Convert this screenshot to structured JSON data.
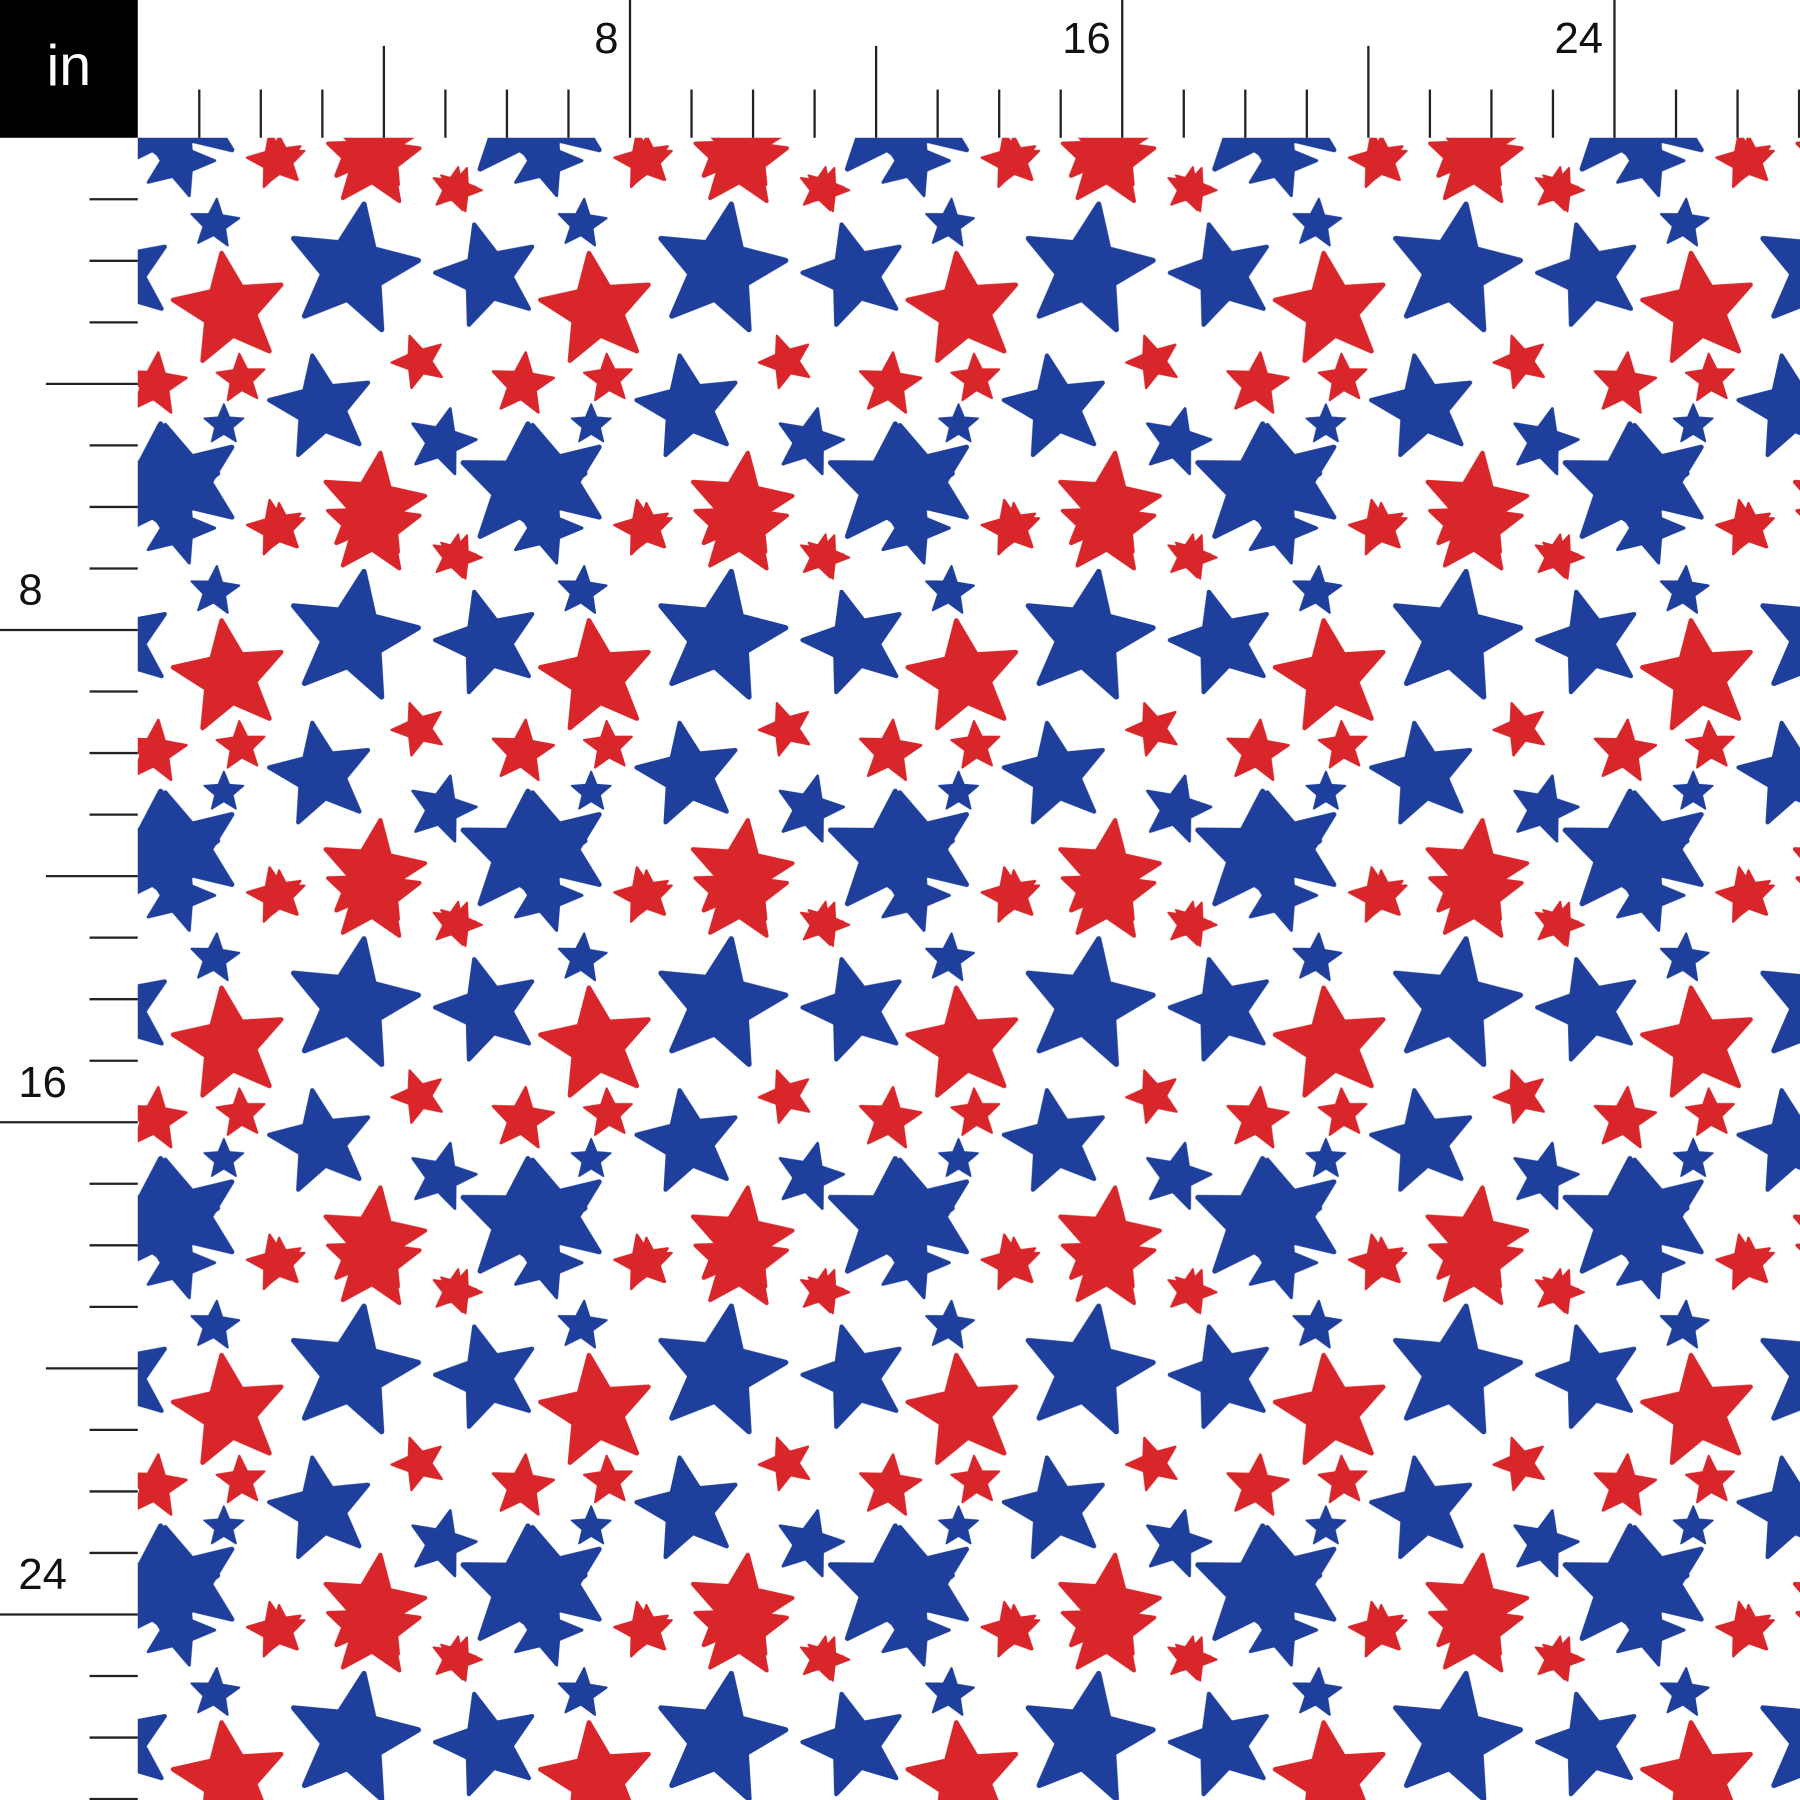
{
  "unit": "in",
  "top_ruler": {
    "labels": [
      8,
      16,
      24
    ]
  },
  "left_ruler": {
    "labels": [
      8,
      16,
      24
    ]
  }
}
